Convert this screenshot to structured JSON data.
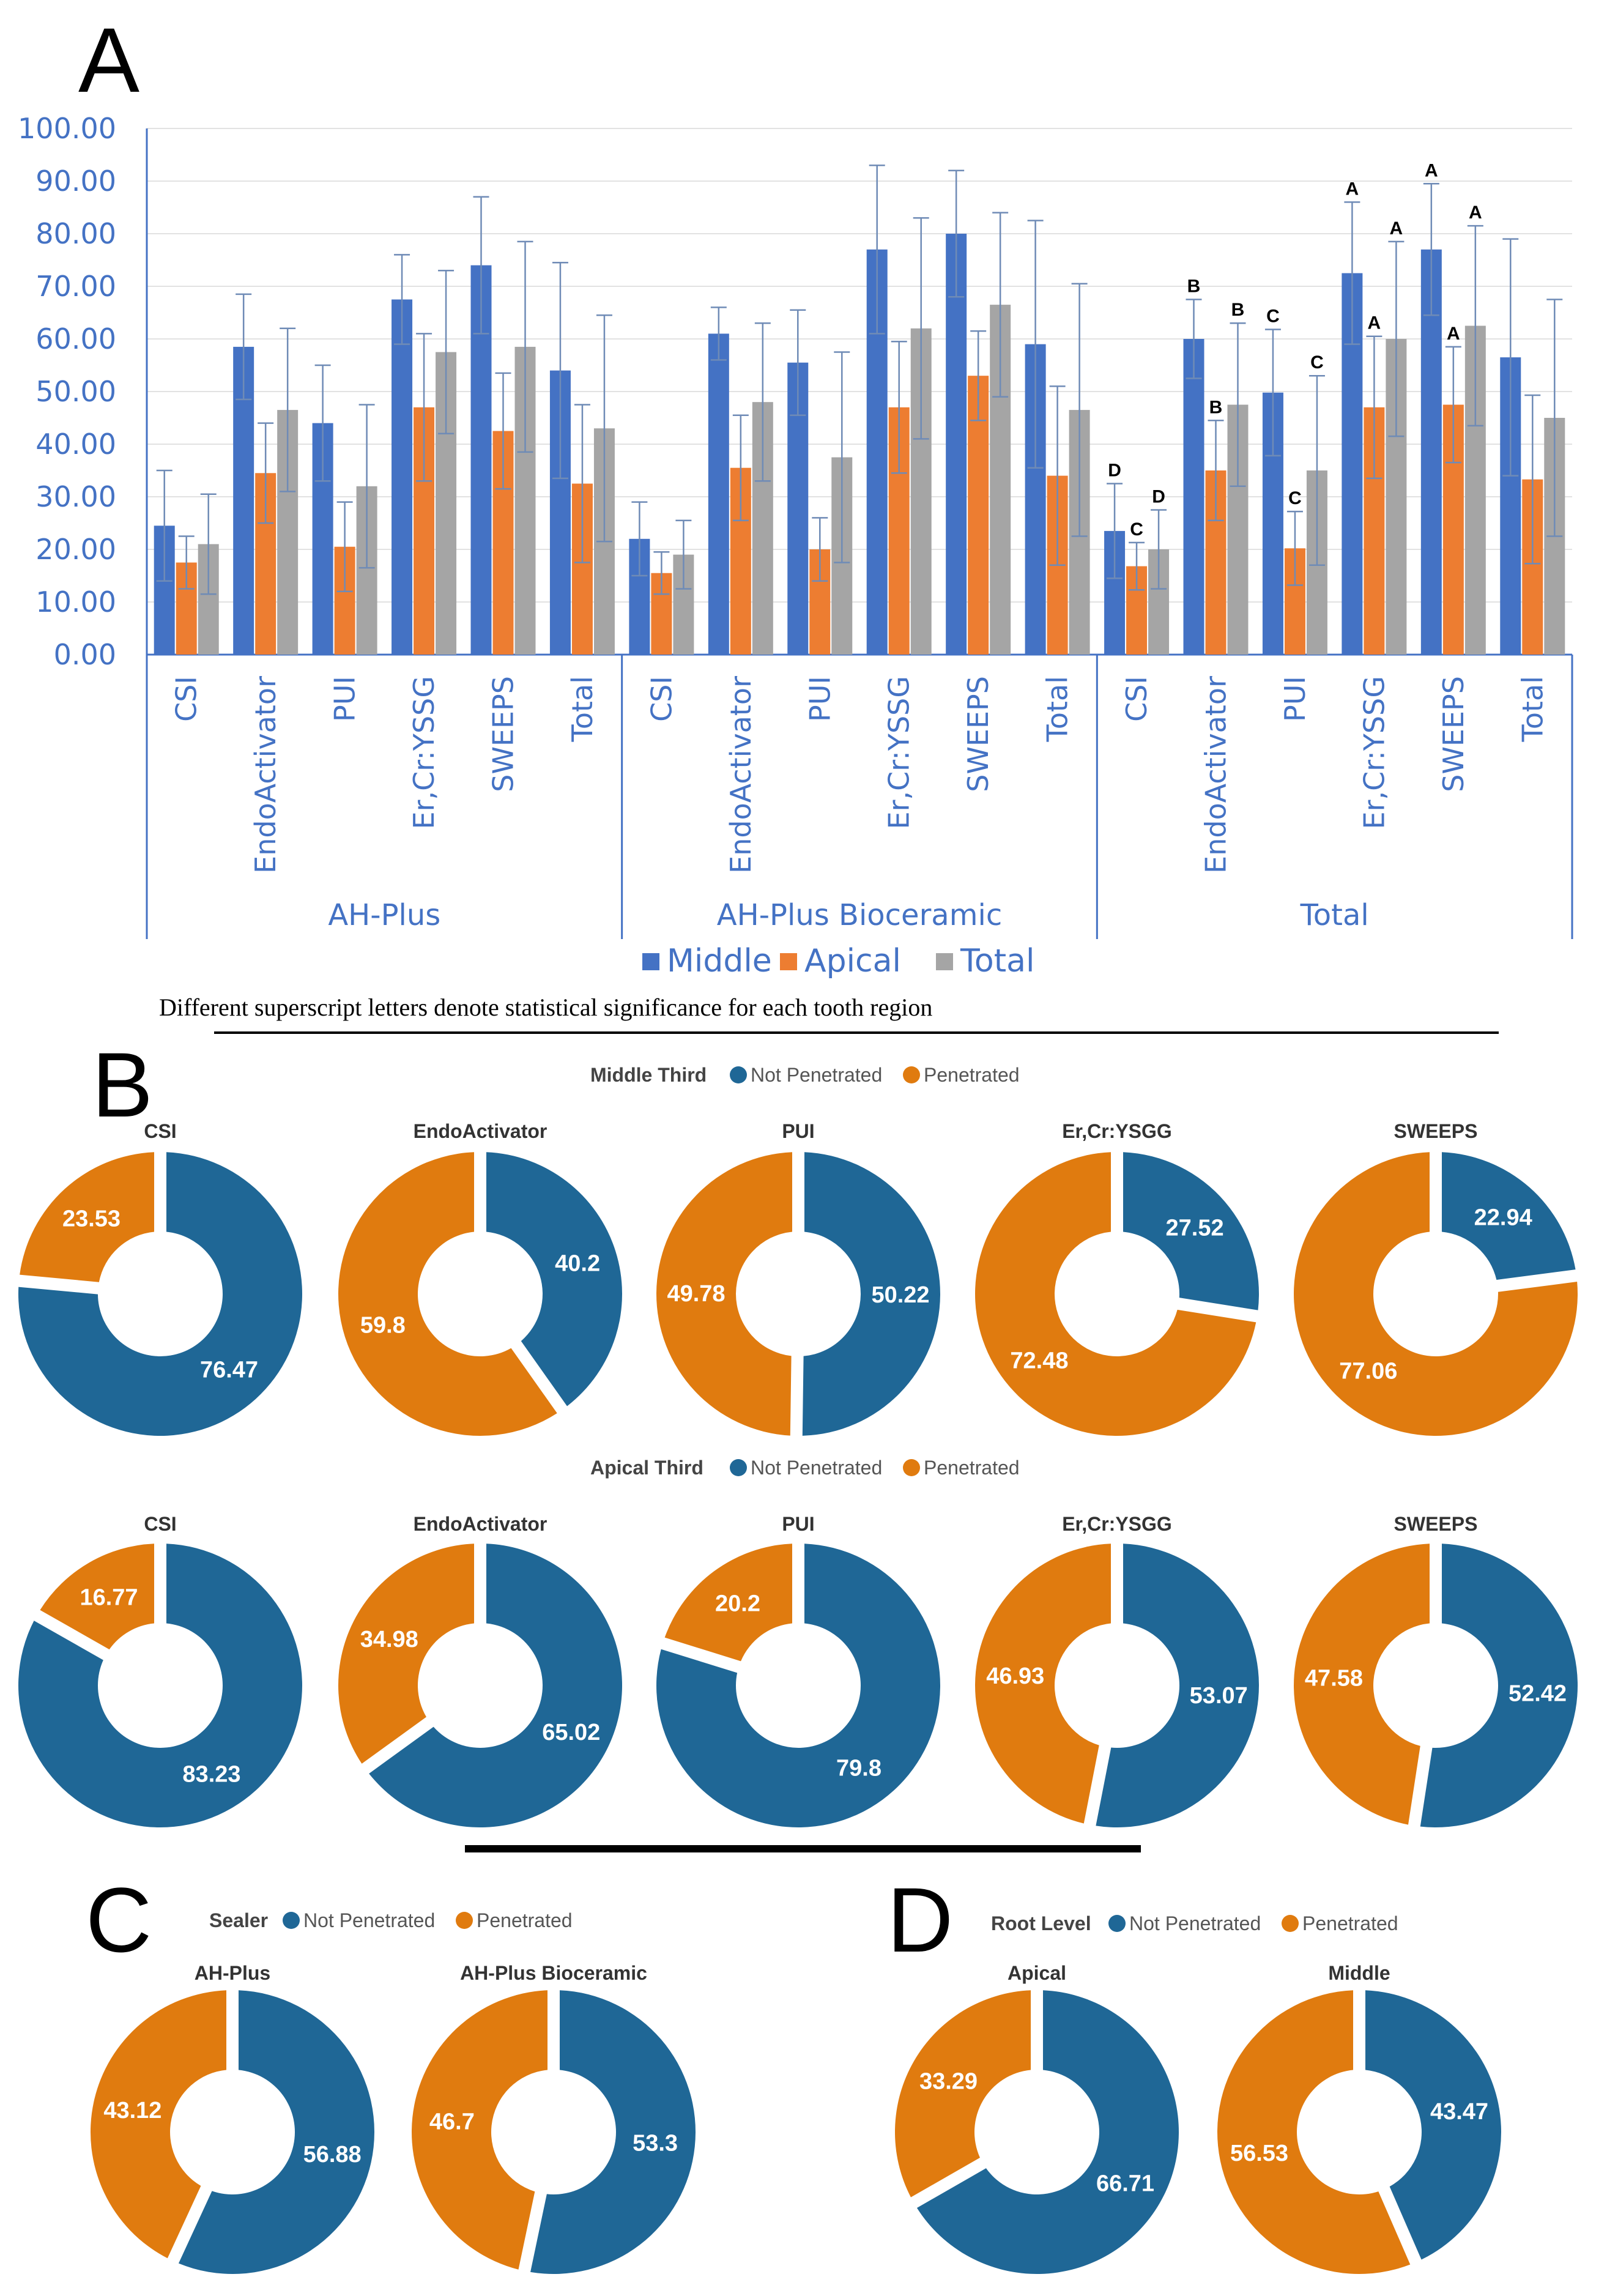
{
  "panels": {
    "a": "A",
    "b": "B",
    "c": "C",
    "d": "D"
  },
  "colors": {
    "middle": "#4472c4",
    "apical": "#ed7d31",
    "total": "#a5a5a5",
    "not_penetrated": "#1f6796",
    "penetrated": "#e07b0f",
    "axis_text": "#4472c4"
  },
  "note": "Different superscript letters denote statistical significance for each tooth region",
  "chart_data": [
    {
      "type": "bar",
      "id": "A",
      "ylim": [
        0,
        100
      ],
      "yticks": [
        "0.00",
        "10.00",
        "20.00",
        "30.00",
        "40.00",
        "50.00",
        "60.00",
        "70.00",
        "80.00",
        "90.00",
        "100.00"
      ],
      "groups": [
        "AH-Plus",
        "AH-Plus Bioceramic",
        "Total"
      ],
      "categories": [
        "CSI",
        "EndoActivator",
        "PUI",
        "Er,Cr:YSSG",
        "SWEEPS",
        "Total"
      ],
      "series": [
        {
          "name": "Middle",
          "values": [
            [
              24.5,
              58.5,
              44,
              67.5,
              74,
              54
            ],
            [
              22,
              61,
              55.5,
              77,
              80,
              59
            ],
            [
              23.5,
              60,
              49.8,
              72.5,
              77,
              56.5
            ]
          ],
          "errors": [
            [
              10.5,
              10,
              11,
              8.5,
              13,
              20.5
            ],
            [
              7,
              5,
              10,
              16,
              12,
              23.5
            ],
            [
              9,
              7.5,
              12,
              13.5,
              12.5,
              22.5
            ]
          ]
        },
        {
          "name": "Apical",
          "values": [
            [
              17.5,
              34.5,
              20.5,
              47,
              42.5,
              32.5
            ],
            [
              15.5,
              35.5,
              20,
              47,
              53,
              34
            ],
            [
              16.8,
              35,
              20.2,
              47,
              47.5,
              33.3
            ]
          ],
          "errors": [
            [
              5,
              9.5,
              8.5,
              14,
              11,
              15
            ],
            [
              4,
              10,
              6,
              12.5,
              8.5,
              17
            ],
            [
              4.5,
              9.5,
              7,
              13.5,
              11,
              16
            ]
          ]
        },
        {
          "name": "Total",
          "values": [
            [
              21,
              46.5,
              32,
              57.5,
              58.5,
              43
            ],
            [
              19,
              48,
              37.5,
              62,
              66.5,
              46.5
            ],
            [
              20,
              47.5,
              35,
              60,
              62.5,
              45
            ]
          ],
          "errors": [
            [
              9.5,
              15.5,
              15.5,
              15.5,
              20,
              21.5
            ],
            [
              6.5,
              15,
              20,
              21,
              17.5,
              24
            ],
            [
              7.5,
              15.5,
              18,
              18.5,
              19,
              22.5
            ]
          ]
        }
      ],
      "sig_letters": {
        "Middle": [
          "D",
          "B",
          "C",
          "A",
          "A",
          ""
        ],
        "Apical": [
          "C",
          "B",
          "C",
          "A",
          "A",
          ""
        ],
        "Total": [
          "D",
          "B",
          "C",
          "A",
          "A",
          ""
        ]
      },
      "legend": [
        "Middle",
        "Apical",
        "Total"
      ]
    },
    {
      "type": "pie",
      "id": "B",
      "rows": [
        {
          "title": "Middle Third",
          "legend": [
            "Not Penetrated",
            "Penetrated"
          ],
          "items": [
            {
              "label": "CSI",
              "not_penetrated": 76.47,
              "penetrated": 23.53
            },
            {
              "label": "EndoActivator",
              "not_penetrated": 40.2,
              "penetrated": 59.8
            },
            {
              "label": "PUI",
              "not_penetrated": 50.22,
              "penetrated": 49.78
            },
            {
              "label": "Er,Cr:YSGG",
              "not_penetrated": 27.52,
              "penetrated": 72.48
            },
            {
              "label": "SWEEPS",
              "not_penetrated": 22.94,
              "penetrated": 77.06
            }
          ]
        },
        {
          "title": "Apical Third",
          "legend": [
            "Not Penetrated",
            "Penetrated"
          ],
          "items": [
            {
              "label": "CSI",
              "not_penetrated": 83.23,
              "penetrated": 16.77
            },
            {
              "label": "EndoActivator",
              "not_penetrated": 65.02,
              "penetrated": 34.98
            },
            {
              "label": "PUI",
              "not_penetrated": 79.8,
              "penetrated": 20.2
            },
            {
              "label": "Er,Cr:YSGG",
              "not_penetrated": 53.07,
              "penetrated": 46.93
            },
            {
              "label": "SWEEPS",
              "not_penetrated": 52.42,
              "penetrated": 47.58
            }
          ]
        }
      ]
    },
    {
      "type": "pie",
      "id": "C",
      "title": "Sealer",
      "legend": [
        "Not Penetrated",
        "Penetrated"
      ],
      "items": [
        {
          "label": "AH-Plus",
          "not_penetrated": 56.88,
          "penetrated": 43.12
        },
        {
          "label": "AH-Plus Bioceramic",
          "not_penetrated": 53.3,
          "penetrated": 46.7
        }
      ]
    },
    {
      "type": "pie",
      "id": "D",
      "title": "Root Level",
      "legend": [
        "Not Penetrated",
        "Penetrated"
      ],
      "items": [
        {
          "label": "Apical",
          "not_penetrated": 66.71,
          "penetrated": 33.29
        },
        {
          "label": "Middle",
          "not_penetrated": 43.47,
          "penetrated": 56.53
        }
      ]
    }
  ]
}
